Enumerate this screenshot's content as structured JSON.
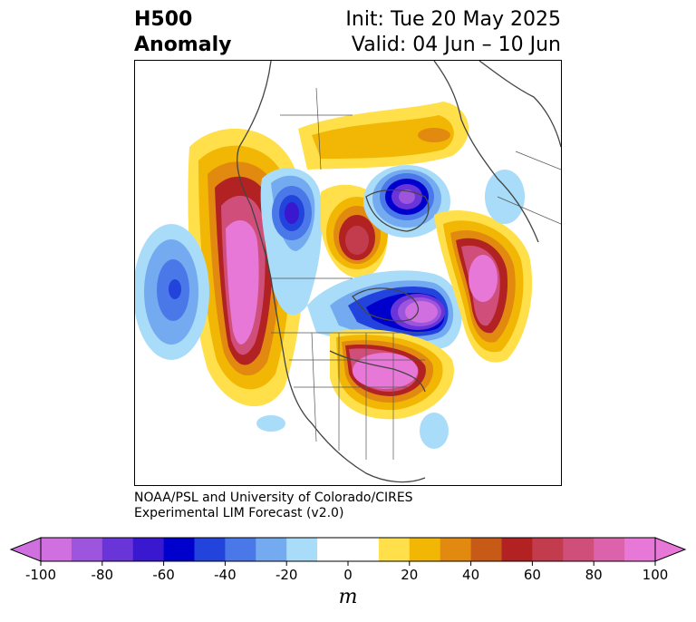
{
  "title": {
    "left_line1": "H500",
    "left_line2": "Anomaly",
    "init": "Init: Tue 20 May 2025",
    "valid": "Valid: 04 Jun – 10 Jun"
  },
  "credit": {
    "line1": "NOAA/PSL and University of Colorado/CIRES",
    "line2": "Experimental LIM Forecast (v2.0)"
  },
  "colorbar": {
    "unit": "m",
    "ticks": [
      "-100",
      "-80",
      "-60",
      "-40",
      "-20",
      "0",
      "20",
      "40",
      "60",
      "80",
      "100"
    ],
    "bins": [
      {
        "range": [
          -100,
          -90
        ],
        "color": "#d070e0"
      },
      {
        "range": [
          -90,
          -80
        ],
        "color": "#9e55dd"
      },
      {
        "range": [
          -80,
          -70
        ],
        "color": "#6a35d8"
      },
      {
        "range": [
          -70,
          -60
        ],
        "color": "#3a18d0"
      },
      {
        "range": [
          -60,
          -50
        ],
        "color": "#0000cc"
      },
      {
        "range": [
          -50,
          -40
        ],
        "color": "#2244dd"
      },
      {
        "range": [
          -40,
          -30
        ],
        "color": "#4a78e8"
      },
      {
        "range": [
          -30,
          -20
        ],
        "color": "#74aaf0"
      },
      {
        "range": [
          -20,
          -10
        ],
        "color": "#a8dcf8"
      },
      {
        "range": [
          -10,
          0
        ],
        "color": "#ffffff"
      },
      {
        "range": [
          0,
          10
        ],
        "color": "#ffffff"
      },
      {
        "range": [
          10,
          20
        ],
        "color": "#ffe04a"
      },
      {
        "range": [
          20,
          30
        ],
        "color": "#f2b705"
      },
      {
        "range": [
          30,
          40
        ],
        "color": "#e28a10"
      },
      {
        "range": [
          40,
          50
        ],
        "color": "#c85a18"
      },
      {
        "range": [
          50,
          60
        ],
        "color": "#b22222"
      },
      {
        "range": [
          60,
          70
        ],
        "color": "#c23c4e"
      },
      {
        "range": [
          70,
          80
        ],
        "color": "#d04e7a"
      },
      {
        "range": [
          80,
          90
        ],
        "color": "#dc62ac"
      },
      {
        "range": [
          90,
          100
        ],
        "color": "#e878d8"
      }
    ],
    "extend_low_color": "#d070e0",
    "extend_high_color": "#e878d8"
  },
  "map": {
    "anomaly_centers": [
      {
        "label": "Northeast Pacific ridge",
        "sign": "positive",
        "peak_m": 100
      },
      {
        "label": "Central Pacific trough",
        "sign": "negative",
        "peak_m": -40
      },
      {
        "label": "Hudson Bay / Canadian trough",
        "sign": "negative",
        "peak_m": -80
      },
      {
        "label": "Western Canada trough",
        "sign": "negative",
        "peak_m": -60
      },
      {
        "label": "Central Canada ridge",
        "sign": "positive",
        "peak_m": 60
      },
      {
        "label": "North Atlantic trough",
        "sign": "negative",
        "peak_m": -100
      },
      {
        "label": "Greenland ridge",
        "sign": "positive",
        "peak_m": 90
      },
      {
        "label": "Eastern US ridge",
        "sign": "positive",
        "peak_m": 90
      }
    ]
  }
}
